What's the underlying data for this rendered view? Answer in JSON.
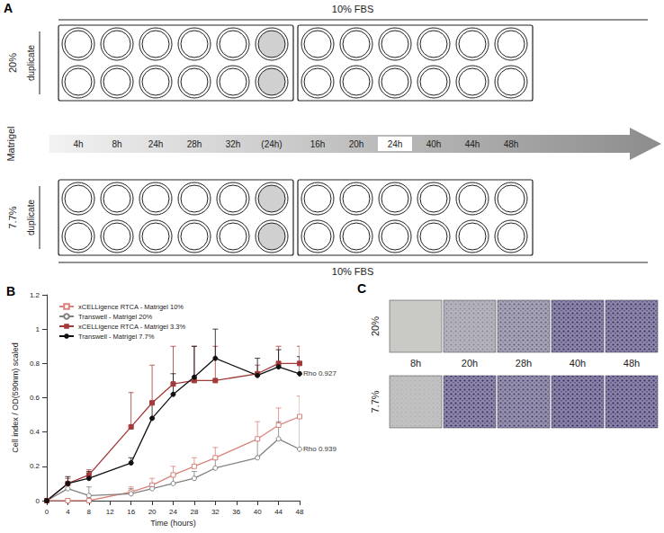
{
  "panel_a": {
    "label": "A",
    "medium": "10% FBS",
    "factor": "Matrigel",
    "groups": [
      {
        "concentration": "20%",
        "replicates": "duplicate"
      },
      {
        "concentration": "7.7%",
        "replicates": "duplicate"
      }
    ],
    "plates": [
      {
        "times": [
          "4h",
          "8h",
          "24h",
          "28h",
          "32h",
          "(24h)"
        ],
        "shaded": "(24h)"
      },
      {
        "times": [
          "16h",
          "20h",
          "24h",
          "40h",
          "44h",
          "48h"
        ],
        "boxed": "24h"
      }
    ]
  },
  "chart_data": {
    "type": "line",
    "title": "B",
    "x_label": "Time (hours)",
    "y_label": "Cell index / OD(590nm) scaled",
    "xlim": [
      0,
      48
    ],
    "xticks": [
      0,
      4,
      8,
      12,
      16,
      20,
      24,
      28,
      32,
      36,
      40,
      44,
      48
    ],
    "ylim": [
      0,
      1.2
    ],
    "yticks": [
      0,
      0.2,
      0.4,
      0.6,
      0.8,
      1,
      1.2
    ],
    "grid": false,
    "legend": "top-left",
    "x": [
      0,
      4,
      8,
      16,
      20,
      24,
      28,
      32,
      40,
      44,
      48
    ],
    "series": [
      {
        "name": "xCELLigence RTCA - Matrigel 10%",
        "color": "#d9837c",
        "marker": "square-open",
        "line_style": "solid",
        "values": [
          0,
          0.0,
          0.0,
          0.05,
          0.09,
          0.15,
          0.2,
          0.25,
          0.36,
          0.44,
          0.49
        ],
        "error": [
          0,
          0.01,
          0.02,
          0.03,
          0.04,
          0.05,
          0.05,
          0.06,
          0.1,
          0.1,
          0.12
        ]
      },
      {
        "name": "Transwell - Matrigel 20%",
        "color": "#808080",
        "marker": "circle-open",
        "line_style": "solid",
        "values": [
          0,
          0.07,
          0.03,
          0.04,
          0.07,
          0.1,
          0.13,
          0.19,
          0.25,
          0.36,
          0.3
        ],
        "error": [
          0,
          0.03,
          0.05,
          0.03,
          0.03,
          0.05,
          0.04,
          0.05,
          0.1,
          0.1,
          0.2
        ]
      },
      {
        "name": "xCELLigence RTCA - Matrigel 3.3%",
        "color": "#a33a3a",
        "marker": "square",
        "line_style": "solid",
        "values": [
          0,
          0.1,
          0.15,
          0.43,
          0.57,
          0.68,
          0.7,
          0.7,
          0.74,
          0.8,
          0.8
        ],
        "error": [
          0,
          0.03,
          0.03,
          0.2,
          0.22,
          0.22,
          0.2,
          0.2,
          0.05,
          0.1,
          0.1
        ]
      },
      {
        "name": "Transwell - Matrigel 7.7%",
        "color": "#111111",
        "marker": "circle",
        "line_style": "solid",
        "values": [
          0,
          0.1,
          0.13,
          0.22,
          0.48,
          0.62,
          0.72,
          0.83,
          0.73,
          0.78,
          0.74
        ],
        "error": [
          0,
          0.04,
          0.04,
          0.03,
          0.1,
          0.12,
          0.18,
          0.17,
          0.1,
          0.1,
          0.1
        ]
      }
    ],
    "annotations": [
      {
        "text": "Rho 0.927",
        "series": "Transwell - Matrigel 7.7%"
      },
      {
        "text": "Rho 0.939",
        "series": "Transwell - Matrigel 20%"
      }
    ]
  },
  "panel_c": {
    "label": "C",
    "rows": [
      "20%",
      "7.7%"
    ],
    "times": [
      "8h",
      "20h",
      "28h",
      "40h",
      "48h"
    ]
  }
}
